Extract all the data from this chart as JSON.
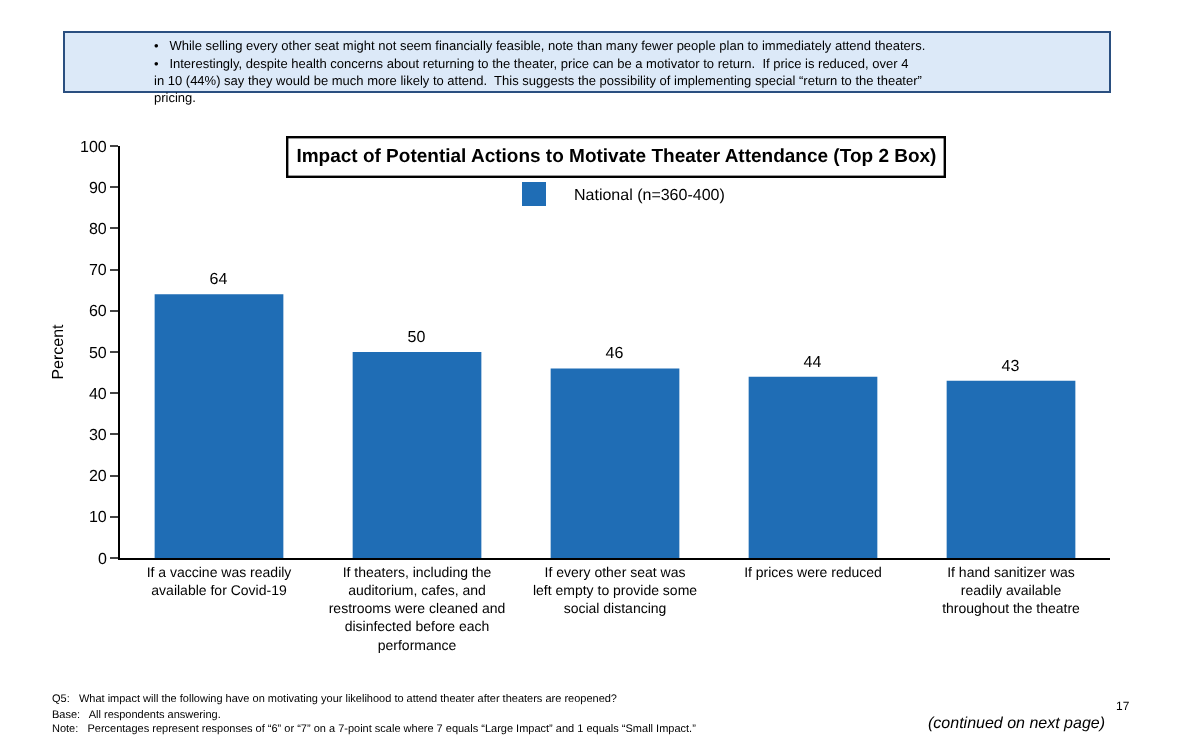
{
  "chart_data": {
    "type": "bar",
    "title": "Impact of Potential Actions to Motivate Theater Attendance (Top 2 Box)",
    "ylabel": "Percent",
    "categories": [
      "If a vaccine was readily available for Covid-19",
      "If theaters, including the auditorium, cafes, and restrooms were cleaned and disinfected before each performance",
      "If every other seat was left empty to provide some social distancing",
      "If prices were reduced",
      "If hand sanitizer was readily available throughout the theatre"
    ],
    "series": [
      {
        "name": "National (n=360-400)",
        "color": "#1f6db5",
        "values": [
          64,
          50,
          46,
          44,
          43
        ]
      }
    ],
    "ylim": [
      0,
      100
    ],
    "yticks": [
      0,
      10,
      20,
      30,
      40,
      50,
      60,
      70,
      80,
      90,
      100
    ],
    "grid": false,
    "legend": "top",
    "data_labels": true,
    "annotations": [
      "•   While selling every other seat might not seem financially feasible, note than many fewer people plan to immediately attend theaters.",
      "•   Interestingly, despite health concerns about returning to the theater, price can be a motivator to return.  If price is reduced, over 4 in 10 (44%) say they would be much more likely to attend.  This suggests the possibility of implementing special “return to the theater” pricing.",
      "Q5:   What impact will the following have on motivating your likelihood to attend theater after theaters are reopened?",
      "Base:   All respondents answering.",
      "Note:   Percentages represent responses of “6” or “7” on a 7-point scale where 7 equals “Large Impact” and 1 equals “Small Impact.”",
      "(continued on next page)",
      "17"
    ]
  }
}
